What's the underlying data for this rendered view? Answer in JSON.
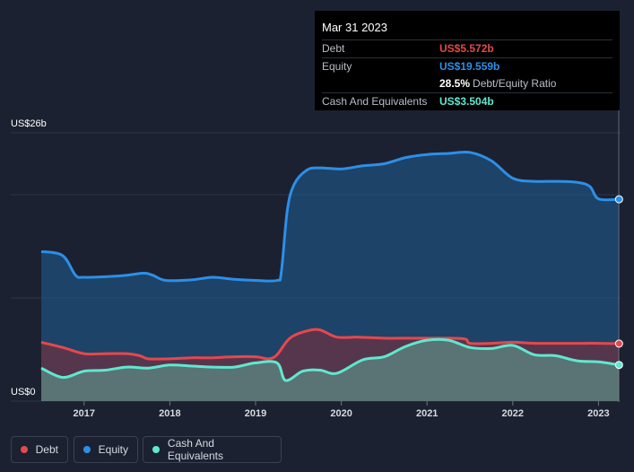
{
  "chart_data": {
    "type": "area",
    "y_axis": {
      "top_label": "US$26b",
      "bottom_label": "US$0",
      "ylim": [
        0,
        26
      ]
    },
    "x_ticks": [
      "2017",
      "2018",
      "2019",
      "2020",
      "2021",
      "2022",
      "2023"
    ],
    "series": [
      {
        "name": "Debt",
        "color": "#e5484d",
        "points": [
          [
            2016.5,
            5.7
          ],
          [
            2016.75,
            5.2
          ],
          [
            2017.0,
            4.6
          ],
          [
            2017.25,
            4.6
          ],
          [
            2017.5,
            4.6
          ],
          [
            2017.65,
            4.4
          ],
          [
            2017.75,
            4.1
          ],
          [
            2018.0,
            4.1
          ],
          [
            2018.25,
            4.2
          ],
          [
            2018.5,
            4.2
          ],
          [
            2018.75,
            4.3
          ],
          [
            2019.0,
            4.3
          ],
          [
            2019.15,
            4.1
          ],
          [
            2019.25,
            4.5
          ],
          [
            2019.4,
            6.1
          ],
          [
            2019.6,
            6.8
          ],
          [
            2019.75,
            6.9
          ],
          [
            2019.95,
            6.2
          ],
          [
            2020.2,
            6.2
          ],
          [
            2020.5,
            6.1
          ],
          [
            2020.75,
            6.1
          ],
          [
            2021.0,
            6.1
          ],
          [
            2021.25,
            6.1
          ],
          [
            2021.45,
            6.0
          ],
          [
            2021.5,
            5.6
          ],
          [
            2021.75,
            5.6
          ],
          [
            2022.0,
            5.7
          ],
          [
            2022.25,
            5.6
          ],
          [
            2022.5,
            5.6
          ],
          [
            2022.75,
            5.6
          ],
          [
            2023.0,
            5.6
          ],
          [
            2023.24,
            5.572
          ]
        ]
      },
      {
        "name": "Equity",
        "color": "#2c8fe8",
        "points": [
          [
            2016.5,
            14.5
          ],
          [
            2016.75,
            14.1
          ],
          [
            2016.9,
            12.2
          ],
          [
            2017.0,
            12.0
          ],
          [
            2017.25,
            12.05
          ],
          [
            2017.5,
            12.2
          ],
          [
            2017.7,
            12.4
          ],
          [
            2017.8,
            12.2
          ],
          [
            2017.95,
            11.7
          ],
          [
            2018.25,
            11.75
          ],
          [
            2018.5,
            12.0
          ],
          [
            2018.75,
            11.8
          ],
          [
            2019.0,
            11.7
          ],
          [
            2019.25,
            11.7
          ],
          [
            2019.3,
            12.5
          ],
          [
            2019.37,
            18.5
          ],
          [
            2019.45,
            21.0
          ],
          [
            2019.6,
            22.4
          ],
          [
            2019.75,
            22.6
          ],
          [
            2020.0,
            22.5
          ],
          [
            2020.25,
            22.8
          ],
          [
            2020.5,
            23.0
          ],
          [
            2020.75,
            23.6
          ],
          [
            2021.0,
            23.9
          ],
          [
            2021.25,
            24.0
          ],
          [
            2021.5,
            24.1
          ],
          [
            2021.75,
            23.3
          ],
          [
            2022.0,
            21.6
          ],
          [
            2022.25,
            21.3
          ],
          [
            2022.5,
            21.3
          ],
          [
            2022.75,
            21.2
          ],
          [
            2022.9,
            20.8
          ],
          [
            2023.0,
            19.6
          ],
          [
            2023.24,
            19.559
          ]
        ]
      },
      {
        "name": "Cash And Equivalents",
        "color": "#5fe8d0",
        "points": [
          [
            2016.5,
            3.2
          ],
          [
            2016.75,
            2.3
          ],
          [
            2017.0,
            2.9
          ],
          [
            2017.25,
            3.0
          ],
          [
            2017.5,
            3.3
          ],
          [
            2017.75,
            3.2
          ],
          [
            2018.0,
            3.5
          ],
          [
            2018.25,
            3.4
          ],
          [
            2018.5,
            3.3
          ],
          [
            2018.75,
            3.3
          ],
          [
            2019.0,
            3.7
          ],
          [
            2019.25,
            3.7
          ],
          [
            2019.35,
            2.0
          ],
          [
            2019.55,
            2.9
          ],
          [
            2019.75,
            3.0
          ],
          [
            2019.95,
            2.7
          ],
          [
            2020.25,
            4.0
          ],
          [
            2020.5,
            4.3
          ],
          [
            2020.75,
            5.3
          ],
          [
            2021.0,
            5.9
          ],
          [
            2021.25,
            5.9
          ],
          [
            2021.5,
            5.2
          ],
          [
            2021.75,
            5.1
          ],
          [
            2022.0,
            5.4
          ],
          [
            2022.25,
            4.5
          ],
          [
            2022.5,
            4.4
          ],
          [
            2022.75,
            3.9
          ],
          [
            2023.0,
            3.8
          ],
          [
            2023.24,
            3.504
          ]
        ]
      }
    ]
  },
  "tooltip": {
    "date": "Mar 31 2023",
    "debt_label": "Debt",
    "debt_value": "US$5.572b",
    "equity_label": "Equity",
    "equity_value": "US$19.559b",
    "ratio_value": "28.5%",
    "ratio_label": "Debt/Equity Ratio",
    "cash_label": "Cash And Equivalents",
    "cash_value": "US$3.504b"
  },
  "legend": {
    "debt": "Debt",
    "equity": "Equity",
    "cash": "Cash And Equivalents"
  },
  "colors": {
    "debt": "#e5484d",
    "equity": "#2c8fe8",
    "cash": "#5fe8d0"
  }
}
